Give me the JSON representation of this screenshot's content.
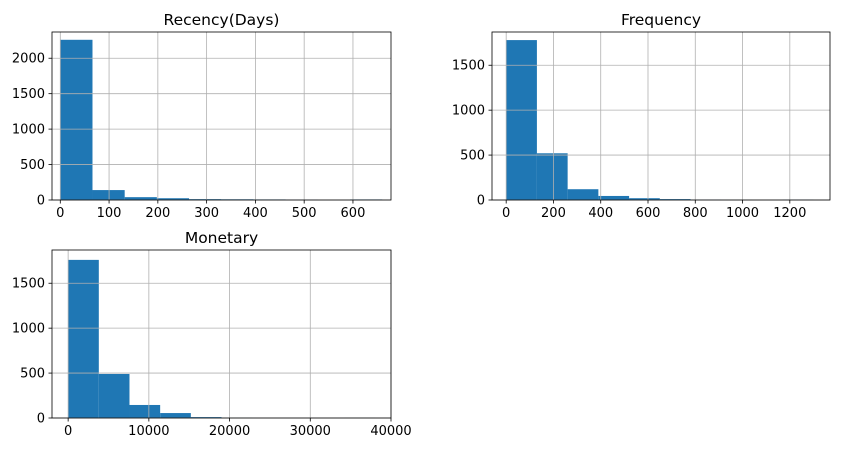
{
  "colors": {
    "bar": "#1f77b4",
    "grid": "#b0b0b0",
    "axis": "#000000",
    "text": "#000000",
    "background": "#ffffff"
  },
  "chart_data": [
    {
      "type": "bar",
      "subtype": "histogram",
      "title": "Recency(Days)",
      "xlabel": "",
      "ylabel": "",
      "bin_edges": [
        0,
        66,
        132,
        198,
        264,
        330,
        396,
        462,
        528,
        594,
        660
      ],
      "values": [
        2260,
        140,
        40,
        25,
        12,
        10,
        8,
        5,
        0,
        8
      ],
      "xlim": [
        -17,
        678
      ],
      "ylim": [
        0,
        2370
      ],
      "x_ticks": [
        0,
        100,
        200,
        300,
        400,
        500,
        600
      ],
      "y_ticks": [
        0,
        500,
        1000,
        1500,
        2000
      ],
      "x_tick_labels": [
        "0",
        "100",
        "200",
        "300",
        "400",
        "500",
        "600"
      ],
      "y_tick_labels": [
        "0",
        "500",
        "1000",
        "1500",
        "2000"
      ],
      "grid": true
    },
    {
      "type": "bar",
      "subtype": "histogram",
      "title": "Frequency",
      "xlabel": "",
      "ylabel": "",
      "bin_edges": [
        0,
        130,
        260,
        390,
        520,
        650,
        780,
        910,
        1040,
        1170,
        1300
      ],
      "values": [
        1780,
        520,
        120,
        45,
        20,
        10,
        5,
        2,
        0,
        5
      ],
      "xlim": [
        -60,
        1370
      ],
      "ylim": [
        0,
        1870
      ],
      "x_ticks": [
        0,
        200,
        400,
        600,
        800,
        1000,
        1200
      ],
      "y_ticks": [
        0,
        500,
        1000,
        1500
      ],
      "x_tick_labels": [
        "0",
        "200",
        "400",
        "600",
        "800",
        "1000",
        "1200"
      ],
      "y_tick_labels": [
        "0",
        "500",
        "1000",
        "1500"
      ],
      "grid": true
    },
    {
      "type": "bar",
      "subtype": "histogram",
      "title": "Monetary",
      "xlabel": "",
      "ylabel": "",
      "bin_edges": [
        0,
        3800,
        7600,
        11400,
        15200,
        19000,
        22800,
        26600,
        30400,
        34200,
        38000
      ],
      "values": [
        1760,
        490,
        145,
        55,
        10,
        3,
        0,
        0,
        0,
        2
      ],
      "xlim": [
        -2000,
        40000
      ],
      "ylim": [
        0,
        1870
      ],
      "x_ticks": [
        0,
        10000,
        20000,
        30000,
        40000
      ],
      "y_ticks": [
        0,
        500,
        1000,
        1500
      ],
      "x_tick_labels": [
        "0",
        "10000",
        "20000",
        "30000",
        "40000"
      ],
      "y_tick_labels": [
        "0",
        "500",
        "1000",
        "1500"
      ],
      "grid": true
    }
  ]
}
